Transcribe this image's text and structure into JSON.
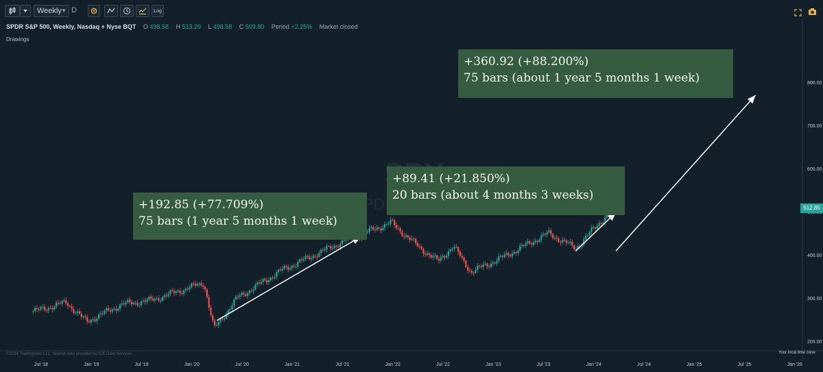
{
  "toolbar": {
    "interval": "Weekly",
    "suffix": "D",
    "log_label": "Log",
    "icons": [
      "candles-icon",
      "chevron-down-icon",
      "settings-icon",
      "indicators-icon",
      "clock-icon",
      "compare-icon",
      "log-icon",
      "fullscreen-icon",
      "camera-icon"
    ]
  },
  "legend": {
    "title": "SPDR S&P 500, Weekly, Nasdaq + Nyse BQT",
    "o_label": "O",
    "o": "498.58",
    "h_label": "H",
    "h": "513.29",
    "l_label": "L",
    "l": "498.58",
    "c_label": "C",
    "c": "509.80",
    "period_label": "Period",
    "period": "+2.25%",
    "status": "Market closed"
  },
  "drawings_label": "Drawings",
  "watermark": {
    "symbol": "SPY",
    "name": "SPDR S&P 500"
  },
  "price_tag": "512.85",
  "annotations": [
    {
      "line1": "+192.85 (+77.709%)",
      "line2": "75 bars (1 year 5 months 1 week)"
    },
    {
      "line1": "+89.41 (+21.850%)",
      "line2": "20 bars (about 4 months 3 weeks)"
    },
    {
      "line1": "+360.92 (+88.200%)",
      "line2": "75 bars (about 1 year 5 months 1 week)"
    }
  ],
  "timezone_label": "Your local time zone",
  "credit": "©2024 TradingView LLC. Market data provided by ICE Data Services",
  "colors": {
    "up": "#26a69a",
    "down": "#ef5350",
    "background": "#132029",
    "annotation_box": "#355b40",
    "arrow": "#ffffff"
  },
  "chart_data": {
    "type": "candlestick",
    "symbol": "SPY",
    "interval": "Weekly",
    "y_ticks": [
      "800.00",
      "700.00",
      "600.00",
      "500.00",
      "400.00",
      "300.00",
      "200.00"
    ],
    "x_ticks": [
      "Jul '18",
      "Jan '19",
      "Jul '19",
      "Jan '20",
      "Jul '20",
      "Jan '21",
      "Jul '21",
      "Jan '22",
      "Jul '22",
      "Jan '23",
      "Jul '23",
      "Jan '24",
      "Jul '24",
      "Jan '25",
      "Jul '25",
      "Jan '26"
    ],
    "ylim": [
      190,
      870
    ],
    "last_price": 512.85,
    "price_path": [
      {
        "t": 2018.45,
        "v": 270
      },
      {
        "t": 2018.6,
        "v": 280
      },
      {
        "t": 2018.75,
        "v": 290
      },
      {
        "t": 2018.95,
        "v": 245
      },
      {
        "t": 2019.3,
        "v": 285
      },
      {
        "t": 2019.6,
        "v": 295
      },
      {
        "t": 2019.95,
        "v": 322
      },
      {
        "t": 2020.12,
        "v": 335
      },
      {
        "t": 2020.22,
        "v": 228
      },
      {
        "t": 2020.45,
        "v": 300
      },
      {
        "t": 2020.9,
        "v": 365
      },
      {
        "t": 2021.5,
        "v": 430
      },
      {
        "t": 2021.98,
        "v": 475
      },
      {
        "t": 2022.25,
        "v": 420
      },
      {
        "t": 2022.45,
        "v": 385
      },
      {
        "t": 2022.6,
        "v": 420
      },
      {
        "t": 2022.78,
        "v": 360
      },
      {
        "t": 2023.1,
        "v": 395
      },
      {
        "t": 2023.55,
        "v": 450
      },
      {
        "t": 2023.82,
        "v": 415
      },
      {
        "t": 2024.12,
        "v": 490
      },
      {
        "t": 2024.26,
        "v": 512
      }
    ],
    "measurements": [
      {
        "from": {
          "t": 2020.25,
          "v": 248
        },
        "to": {
          "t": 2021.68,
          "v": 442
        },
        "change": 192.85,
        "percent": 77.709,
        "bars": 75
      },
      {
        "from": {
          "t": 2023.82,
          "v": 409
        },
        "to": {
          "t": 2024.22,
          "v": 498
        },
        "change": 89.41,
        "percent": 21.85,
        "bars": 20
      },
      {
        "from": {
          "t": 2024.22,
          "v": 409
        },
        "to": {
          "t": 2025.61,
          "v": 770
        },
        "change": 360.92,
        "percent": 88.2,
        "bars": 75
      }
    ]
  }
}
